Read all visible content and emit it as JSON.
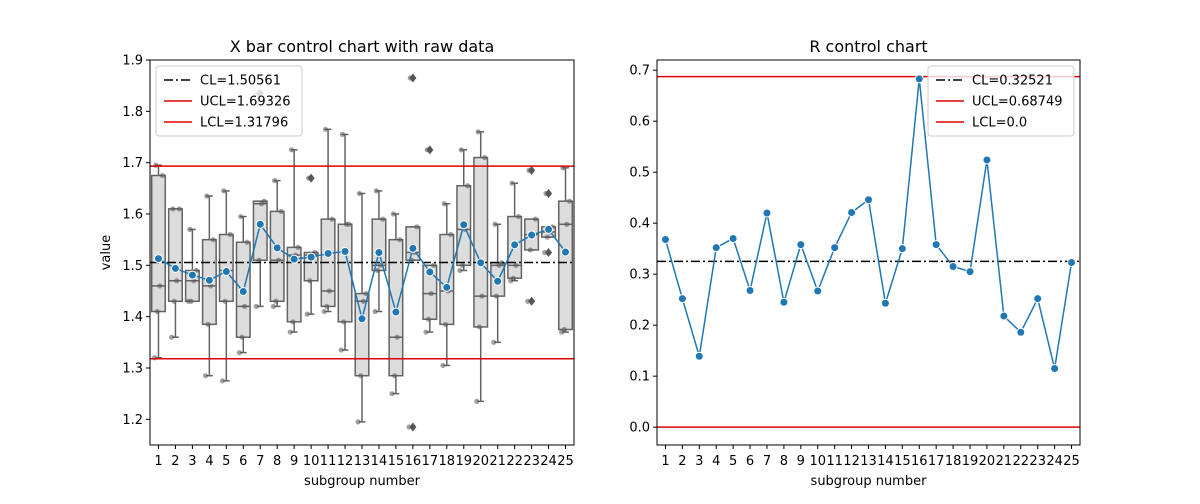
{
  "chart_data": [
    {
      "type": "box",
      "title": "X bar control chart with raw data",
      "xlabel": "subgroup number",
      "ylabel": "value",
      "categories": [
        "1",
        "2",
        "3",
        "4",
        "5",
        "6",
        "7",
        "8",
        "9",
        "10",
        "11",
        "12",
        "13",
        "14",
        "15",
        "16",
        "17",
        "18",
        "19",
        "20",
        "21",
        "22",
        "23",
        "24",
        "25"
      ],
      "ylim": [
        1.15,
        1.9
      ],
      "yticks": [
        1.2,
        1.3,
        1.4,
        1.5,
        1.6,
        1.7,
        1.8,
        1.9
      ],
      "ytick_labels": [
        "1.2",
        "1.3",
        "1.4",
        "1.5",
        "1.6",
        "1.7",
        "1.8",
        "1.9"
      ],
      "legend_position": "top-left",
      "control_lines": [
        {
          "label": "CL=1.50561",
          "value": 1.50561,
          "color": "#000000",
          "style": "dashdot"
        },
        {
          "label": "UCL=1.69326",
          "value": 1.69326,
          "color": "#e00000",
          "style": "solid"
        },
        {
          "label": "LCL=1.31796",
          "value": 1.31796,
          "color": "#e00000",
          "style": "solid"
        }
      ],
      "boxes": [
        {
          "q1": 1.41,
          "median": 1.46,
          "q3": 1.675,
          "low": 1.32,
          "high": 1.695,
          "outliers": []
        },
        {
          "q1": 1.43,
          "median": 1.47,
          "q3": 1.61,
          "low": 1.36,
          "high": 1.61,
          "outliers": []
        },
        {
          "q1": 1.43,
          "median": 1.47,
          "q3": 1.49,
          "low": 1.43,
          "high": 1.57,
          "outliers": []
        },
        {
          "q1": 1.385,
          "median": 1.46,
          "q3": 1.55,
          "low": 1.285,
          "high": 1.635,
          "outliers": []
        },
        {
          "q1": 1.43,
          "median": 1.49,
          "q3": 1.56,
          "low": 1.275,
          "high": 1.645,
          "outliers": []
        },
        {
          "q1": 1.36,
          "median": 1.42,
          "q3": 1.545,
          "low": 1.33,
          "high": 1.595,
          "outliers": []
        },
        {
          "q1": 1.51,
          "median": 1.62,
          "q3": 1.625,
          "low": 1.42,
          "high": 1.625,
          "outliers": [
            1.835
          ]
        },
        {
          "q1": 1.43,
          "median": 1.51,
          "q3": 1.605,
          "low": 1.42,
          "high": 1.665,
          "outliers": []
        },
        {
          "q1": 1.39,
          "median": 1.52,
          "q3": 1.535,
          "low": 1.37,
          "high": 1.725,
          "outliers": []
        },
        {
          "q1": 1.47,
          "median": 1.52,
          "q3": 1.525,
          "low": 1.405,
          "high": 1.525,
          "outliers": [
            1.67
          ]
        },
        {
          "q1": 1.42,
          "median": 1.45,
          "q3": 1.59,
          "low": 1.41,
          "high": 1.765,
          "outliers": []
        },
        {
          "q1": 1.39,
          "median": 1.58,
          "q3": 1.58,
          "low": 1.335,
          "high": 1.755,
          "outliers": []
        },
        {
          "q1": 1.285,
          "median": 1.43,
          "q3": 1.445,
          "low": 1.195,
          "high": 1.64,
          "outliers": []
        },
        {
          "q1": 1.49,
          "median": 1.5,
          "q3": 1.59,
          "low": 1.41,
          "high": 1.645,
          "outliers": []
        },
        {
          "q1": 1.285,
          "median": 1.36,
          "q3": 1.55,
          "low": 1.25,
          "high": 1.6,
          "outliers": []
        },
        {
          "q1": 1.51,
          "median": 1.525,
          "q3": 1.575,
          "low": 1.51,
          "high": 1.575,
          "outliers": [
            1.865,
            1.185
          ]
        },
        {
          "q1": 1.395,
          "median": 1.445,
          "q3": 1.5,
          "low": 1.37,
          "high": 1.5,
          "outliers": [
            1.725
          ]
        },
        {
          "q1": 1.385,
          "median": 1.45,
          "q3": 1.56,
          "low": 1.305,
          "high": 1.62,
          "outliers": []
        },
        {
          "q1": 1.5,
          "median": 1.57,
          "q3": 1.655,
          "low": 1.49,
          "high": 1.725,
          "outliers": []
        },
        {
          "q1": 1.38,
          "median": 1.44,
          "q3": 1.71,
          "low": 1.235,
          "high": 1.76,
          "outliers": []
        },
        {
          "q1": 1.44,
          "median": 1.5,
          "q3": 1.505,
          "low": 1.35,
          "high": 1.58,
          "outliers": []
        },
        {
          "q1": 1.475,
          "median": 1.5,
          "q3": 1.595,
          "low": 1.47,
          "high": 1.66,
          "outliers": []
        },
        {
          "q1": 1.53,
          "median": 1.56,
          "q3": 1.59,
          "low": 1.53,
          "high": 1.59,
          "outliers": [
            1.685,
            1.43
          ]
        },
        {
          "q1": 1.555,
          "median": 1.565,
          "q3": 1.575,
          "low": 1.555,
          "high": 1.575,
          "outliers": [
            1.64,
            1.525
          ]
        },
        {
          "q1": 1.375,
          "median": 1.58,
          "q3": 1.625,
          "low": 1.37,
          "high": 1.69,
          "outliers": []
        }
      ],
      "raw_points": [
        [
          1.32,
          1.41,
          1.46,
          1.675,
          1.695
        ],
        [
          1.36,
          1.43,
          1.47,
          1.61,
          1.61
        ],
        [
          1.43,
          1.43,
          1.47,
          1.49,
          1.57
        ],
        [
          1.285,
          1.385,
          1.46,
          1.55,
          1.635
        ],
        [
          1.275,
          1.43,
          1.49,
          1.56,
          1.645
        ],
        [
          1.33,
          1.36,
          1.42,
          1.545,
          1.595
        ],
        [
          1.42,
          1.51,
          1.62,
          1.625,
          1.835
        ],
        [
          1.42,
          1.43,
          1.51,
          1.605,
          1.665
        ],
        [
          1.37,
          1.39,
          1.52,
          1.535,
          1.725
        ],
        [
          1.405,
          1.47,
          1.52,
          1.525,
          1.67
        ],
        [
          1.41,
          1.42,
          1.45,
          1.59,
          1.765
        ],
        [
          1.335,
          1.39,
          1.58,
          1.58,
          1.755
        ],
        [
          1.195,
          1.285,
          1.43,
          1.445,
          1.64
        ],
        [
          1.41,
          1.49,
          1.5,
          1.59,
          1.645
        ],
        [
          1.25,
          1.285,
          1.36,
          1.55,
          1.6
        ],
        [
          1.185,
          1.51,
          1.525,
          1.575,
          1.865
        ],
        [
          1.37,
          1.395,
          1.445,
          1.5,
          1.725
        ],
        [
          1.305,
          1.385,
          1.45,
          1.56,
          1.62
        ],
        [
          1.49,
          1.5,
          1.57,
          1.655,
          1.725
        ],
        [
          1.235,
          1.38,
          1.44,
          1.71,
          1.76
        ],
        [
          1.35,
          1.44,
          1.5,
          1.505,
          1.58
        ],
        [
          1.47,
          1.475,
          1.5,
          1.595,
          1.66
        ],
        [
          1.43,
          1.53,
          1.56,
          1.59,
          1.685
        ],
        [
          1.525,
          1.555,
          1.565,
          1.575,
          1.64
        ],
        [
          1.37,
          1.375,
          1.58,
          1.625,
          1.69
        ]
      ],
      "means": [
        1.513,
        1.494,
        1.481,
        1.471,
        1.488,
        1.449,
        1.58,
        1.534,
        1.512,
        1.516,
        1.523,
        1.527,
        1.396,
        1.525,
        1.409,
        1.533,
        1.487,
        1.457,
        1.579,
        1.505,
        1.469,
        1.54,
        1.559,
        1.57,
        1.526
      ]
    },
    {
      "type": "line",
      "title": "R control chart",
      "xlabel": "subgroup number",
      "ylabel": "",
      "categories": [
        "1",
        "2",
        "3",
        "4",
        "5",
        "6",
        "7",
        "8",
        "9",
        "10",
        "11",
        "12",
        "13",
        "14",
        "15",
        "16",
        "17",
        "18",
        "19",
        "20",
        "21",
        "22",
        "23",
        "24",
        "25"
      ],
      "ylim": [
        -0.035,
        0.72
      ],
      "yticks": [
        0.0,
        0.1,
        0.2,
        0.3,
        0.4,
        0.5,
        0.6,
        0.7
      ],
      "ytick_labels": [
        "0.0",
        "0.1",
        "0.2",
        "0.3",
        "0.4",
        "0.5",
        "0.6",
        "0.7"
      ],
      "legend_position": "top-right",
      "control_lines": [
        {
          "label": "CL=0.32521",
          "value": 0.32521,
          "color": "#000000",
          "style": "dashdot"
        },
        {
          "label": "UCL=0.68749",
          "value": 0.68749,
          "color": "#e00000",
          "style": "solid"
        },
        {
          "label": "LCL=0.0",
          "value": 0.0,
          "color": "#e00000",
          "style": "solid"
        }
      ],
      "values": [
        0.368,
        0.252,
        0.139,
        0.352,
        0.37,
        0.268,
        0.42,
        0.245,
        0.358,
        0.267,
        0.352,
        0.421,
        0.446,
        0.243,
        0.35,
        0.683,
        0.358,
        0.315,
        0.305,
        0.524,
        0.218,
        0.186,
        0.252,
        0.115,
        0.323
      ]
    }
  ]
}
